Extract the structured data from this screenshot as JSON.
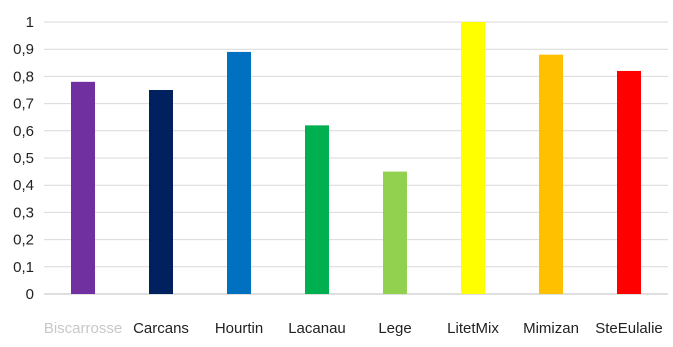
{
  "chart_data": {
    "type": "bar",
    "categories": [
      "Biscarrosse",
      "Carcans",
      "Hourtin",
      "Lacanau",
      "Lege",
      "LitetMix",
      "Mimizan",
      "SteEulalie"
    ],
    "values": [
      0.78,
      0.75,
      0.89,
      0.62,
      0.45,
      1.0,
      0.88,
      0.82
    ],
    "colors": [
      "#7030A0",
      "#002060",
      "#0070C0",
      "#00B050",
      "#92D050",
      "#FFFF00",
      "#FFC000",
      "#FF0000"
    ],
    "y_ticks": [
      "0",
      "0,1",
      "0,2",
      "0,3",
      "0,4",
      "0,5",
      "0,6",
      "0,7",
      "0,8",
      "0,9",
      "1"
    ],
    "title": "",
    "xlabel": "",
    "ylabel": "",
    "ylim": [
      0,
      1
    ],
    "grid": true,
    "legend": "none"
  }
}
